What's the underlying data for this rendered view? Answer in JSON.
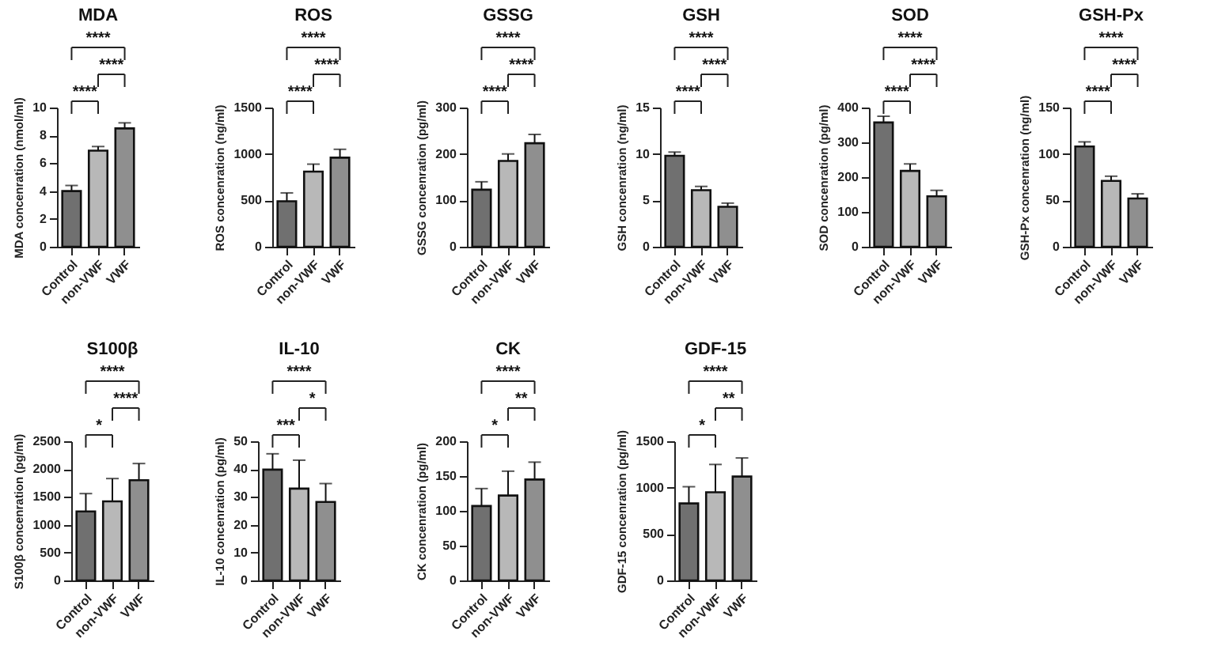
{
  "chart_data": [
    {
      "type": "bar",
      "title": "MDA",
      "ylabel": "MDA concenration (nmol/ml)",
      "categories": [
        "Control",
        "non-VWF",
        "VWF"
      ],
      "values": [
        4.0,
        6.9,
        8.5
      ],
      "errors": [
        [
          4.0,
          4.4
        ],
        [
          6.9,
          7.2
        ],
        [
          8.5,
          8.9
        ]
      ],
      "colors": [
        "#707070",
        "#b8b8b8",
        "#8f8f8f"
      ],
      "ylim": [
        0,
        10
      ],
      "yticks": [
        0,
        2,
        4,
        6,
        8,
        10
      ],
      "annotations": [
        "****",
        "****",
        "****"
      ]
    },
    {
      "type": "bar",
      "title": "ROS",
      "ylabel": "ROS concenration (ng/ml)",
      "categories": [
        "Control",
        "non-VWF",
        "VWF"
      ],
      "values": [
        490,
        810,
        960
      ],
      "errors": [
        [
          490,
          580
        ],
        [
          810,
          890
        ],
        [
          960,
          1050
        ]
      ],
      "colors": [
        "#707070",
        "#b8b8b8",
        "#8f8f8f"
      ],
      "ylim": [
        0,
        1500
      ],
      "yticks": [
        0,
        500,
        1000,
        1500
      ],
      "annotations": [
        "****",
        "****",
        "****"
      ]
    },
    {
      "type": "bar",
      "title": "GSSG",
      "ylabel": "GSSG concenration (pg/ml)",
      "categories": [
        "Control",
        "non-VWF",
        "VWF"
      ],
      "values": [
        123,
        185,
        223
      ],
      "errors": [
        [
          123,
          140
        ],
        [
          185,
          200
        ],
        [
          223,
          242
        ]
      ],
      "colors": [
        "#707070",
        "#b8b8b8",
        "#8f8f8f"
      ],
      "ylim": [
        0,
        300
      ],
      "yticks": [
        0,
        100,
        200,
        300
      ],
      "annotations": [
        "****",
        "****",
        "****"
      ]
    },
    {
      "type": "bar",
      "title": "GSH",
      "ylabel": "GSH concenration (ng/ml)",
      "categories": [
        "Control",
        "non-VWF",
        "VWF"
      ],
      "values": [
        9.8,
        6.1,
        4.3
      ],
      "errors": [
        [
          9.8,
          10.2
        ],
        [
          6.1,
          6.5
        ],
        [
          4.3,
          4.7
        ]
      ],
      "colors": [
        "#707070",
        "#b8b8b8",
        "#8f8f8f"
      ],
      "ylim": [
        0,
        15
      ],
      "yticks": [
        0,
        5,
        10,
        15
      ],
      "annotations": [
        "****",
        "****",
        "****"
      ]
    },
    {
      "type": "bar",
      "title": "SOD",
      "ylabel": "SOD concenration (pg/ml)",
      "categories": [
        "Control",
        "non-VWF",
        "VWF"
      ],
      "values": [
        357,
        218,
        145
      ],
      "errors": [
        [
          357,
          375
        ],
        [
          218,
          238
        ],
        [
          145,
          162
        ]
      ],
      "colors": [
        "#707070",
        "#b8b8b8",
        "#8f8f8f"
      ],
      "ylim": [
        0,
        400
      ],
      "yticks": [
        0,
        100,
        200,
        300,
        400
      ],
      "annotations": [
        "****",
        "****",
        "****"
      ]
    },
    {
      "type": "bar",
      "title": "GSH-Px",
      "ylabel": "GSH-Px concenration (ng/ml)",
      "categories": [
        "Control",
        "non-VWF",
        "VWF"
      ],
      "values": [
        108,
        71,
        52
      ],
      "errors": [
        [
          108,
          113
        ],
        [
          71,
          76
        ],
        [
          52,
          57
        ]
      ],
      "colors": [
        "#707070",
        "#b8b8b8",
        "#8f8f8f"
      ],
      "ylim": [
        0,
        150
      ],
      "yticks": [
        0,
        50,
        100,
        150
      ],
      "annotations": [
        "****",
        "****",
        "****"
      ]
    },
    {
      "type": "bar",
      "title": "S100β",
      "ylabel": "S100β concenration (pg/ml)",
      "categories": [
        "Control",
        "non-VWF",
        "VWF"
      ],
      "values": [
        1240,
        1420,
        1800
      ],
      "errors": [
        [
          1240,
          1560
        ],
        [
          1420,
          1830
        ],
        [
          1800,
          2100
        ]
      ],
      "colors": [
        "#707070",
        "#b8b8b8",
        "#8f8f8f"
      ],
      "ylim": [
        0,
        2500
      ],
      "yticks": [
        0,
        500,
        1000,
        1500,
        2000,
        2500
      ],
      "annotations": [
        "****",
        "*",
        "****"
      ]
    },
    {
      "type": "bar",
      "title": "IL-10",
      "ylabel": "IL-10 concenration (pg/ml)",
      "categories": [
        "Control",
        "non-VWF",
        "VWF"
      ],
      "values": [
        39.8,
        33,
        28.2
      ],
      "errors": [
        [
          39.8,
          45.5
        ],
        [
          33,
          43.2
        ],
        [
          28.2,
          34.8
        ]
      ],
      "colors": [
        "#707070",
        "#b8b8b8",
        "#8f8f8f"
      ],
      "ylim": [
        0,
        50
      ],
      "yticks": [
        0,
        10,
        20,
        30,
        40,
        50
      ],
      "annotations": [
        "****",
        "***",
        "*"
      ]
    },
    {
      "type": "bar",
      "title": "CK",
      "ylabel": "CK concenration (pg/ml)",
      "categories": [
        "Control",
        "non-VWF",
        "VWF"
      ],
      "values": [
        107,
        122,
        145
      ],
      "errors": [
        [
          107,
          132
        ],
        [
          122,
          157
        ],
        [
          145,
          170
        ]
      ],
      "colors": [
        "#707070",
        "#b8b8b8",
        "#8f8f8f"
      ],
      "ylim": [
        0,
        200
      ],
      "yticks": [
        0,
        50,
        100,
        150,
        200
      ],
      "annotations": [
        "****",
        "*",
        "**"
      ]
    },
    {
      "type": "bar",
      "title": "GDF-15",
      "ylabel": "GDF-15 concenration (pg/ml)",
      "categories": [
        "Control",
        "non-VWF",
        "VWF"
      ],
      "values": [
        830,
        950,
        1120
      ],
      "errors": [
        [
          830,
          1010
        ],
        [
          950,
          1250
        ],
        [
          1120,
          1320
        ]
      ],
      "colors": [
        "#707070",
        "#b8b8b8",
        "#8f8f8f"
      ],
      "ylim": [
        0,
        1500
      ],
      "yticks": [
        0,
        500,
        1000,
        1500
      ],
      "annotations": [
        "****",
        "*",
        "**"
      ]
    }
  ]
}
